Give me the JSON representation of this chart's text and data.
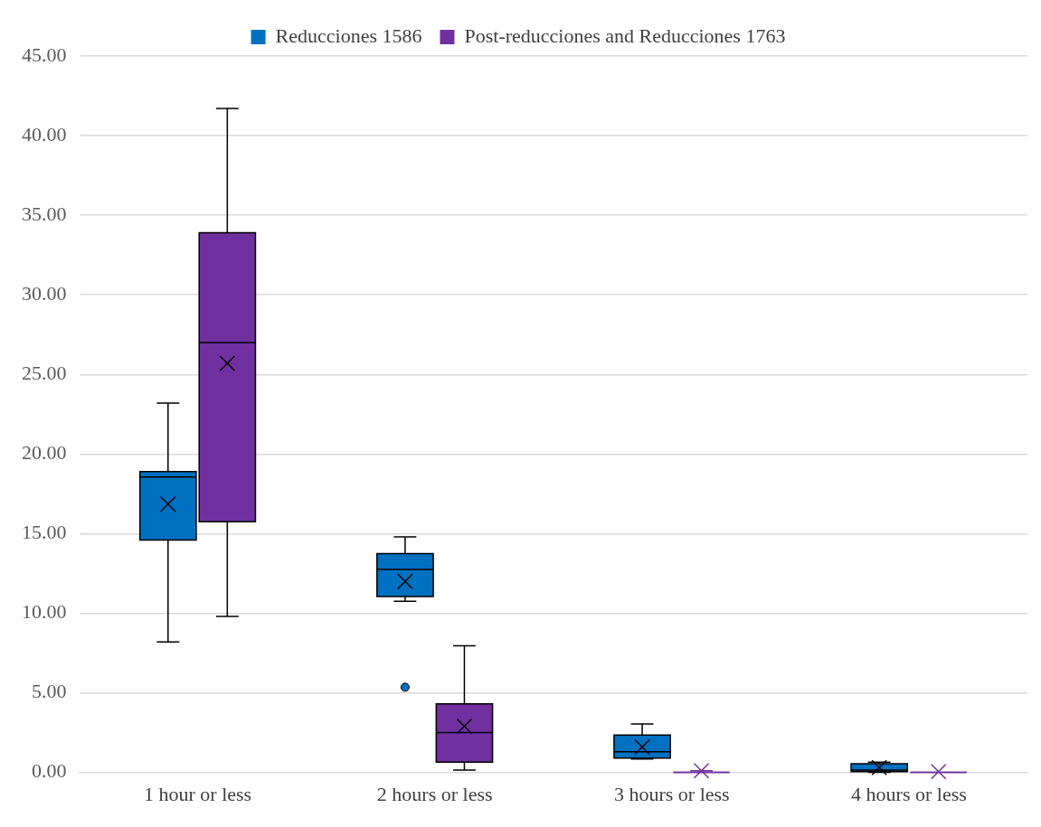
{
  "chart_data": {
    "type": "box",
    "categories": [
      "1 hour or less",
      "2 hours or less",
      "3 hours or less",
      "4 hours or less"
    ],
    "series": [
      {
        "name": "Reducciones 1586",
        "color": "#0070c0",
        "boxes": [
          {
            "low": 8.2,
            "q1": 14.6,
            "median": 18.55,
            "q3": 18.9,
            "high": 23.2,
            "mean": 16.85
          },
          {
            "low": 10.75,
            "q1": 11.05,
            "median": 12.75,
            "q3": 13.75,
            "high": 14.8,
            "mean": 12.0,
            "outliers": [
              5.35
            ]
          },
          {
            "low": 0.85,
            "q1": 0.9,
            "median": 1.3,
            "q3": 2.35,
            "high": 3.05,
            "mean": 1.6
          },
          {
            "low": 0,
            "q1": 0.05,
            "median": 0.15,
            "q3": 0.55,
            "high": 0.65,
            "mean": 0.3
          }
        ]
      },
      {
        "name": "Post-reducciones and Reducciones 1763",
        "color": "#7030a0",
        "boxes": [
          {
            "low": 9.8,
            "q1": 15.75,
            "median": 27.0,
            "q3": 33.9,
            "high": 41.7,
            "mean": 25.7
          },
          {
            "low": 0.15,
            "q1": 0.65,
            "median": 2.5,
            "q3": 4.3,
            "high": 7.95,
            "mean": 2.9
          },
          {
            "low": 0,
            "q1": 0,
            "median": 0,
            "q3": 0,
            "high": 0.1,
            "mean": 0.1
          },
          {
            "low": 0,
            "q1": 0,
            "median": 0,
            "q3": 0,
            "high": 0,
            "mean": 0.05
          }
        ]
      }
    ],
    "ylim": [
      0,
      45
    ],
    "yticks": [
      {
        "value": 0,
        "label": "0.00"
      },
      {
        "value": 5,
        "label": "5.00"
      },
      {
        "value": 10,
        "label": "10.00"
      },
      {
        "value": 15,
        "label": "15.00"
      },
      {
        "value": 20,
        "label": "20.00"
      },
      {
        "value": 25,
        "label": "25.00"
      },
      {
        "value": 30,
        "label": "30.00"
      },
      {
        "value": 35,
        "label": "35.00"
      },
      {
        "value": 40,
        "label": "40.00"
      },
      {
        "value": 45,
        "label": "45.00"
      }
    ],
    "grid": "y",
    "legend": "top"
  }
}
